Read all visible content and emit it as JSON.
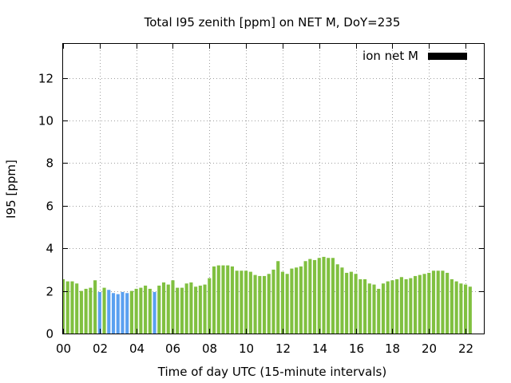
{
  "chart_data": {
    "type": "bar",
    "title": "Total I95 zenith [ppm] on NET M, DoY=235",
    "xlabel": "Time of day UTC (15-minute intervals)",
    "ylabel": "I95 [ppm]",
    "ylim": [
      0,
      13.6
    ],
    "xlim": [
      0,
      23
    ],
    "x_ticks": [
      "00",
      "02",
      "04",
      "06",
      "08",
      "10",
      "12",
      "14",
      "16",
      "18",
      "20",
      "22"
    ],
    "y_ticks": [
      "0",
      "2",
      "4",
      "6",
      "8",
      "10",
      "12"
    ],
    "grid": true,
    "legend": {
      "label": "ion net M",
      "placement": "top-right",
      "color": "#000000"
    },
    "colors": {
      "normal": "#80c040",
      "flagged": "#5aa0f0"
    },
    "interval_hours": 0.25,
    "series": [
      {
        "values": [
          2.55,
          2.45,
          2.45,
          2.35,
          2.0,
          2.1,
          2.15,
          2.5,
          1.95,
          2.15,
          2.05,
          1.9,
          1.85,
          1.95,
          1.9,
          2.0,
          2.1,
          2.15,
          2.25,
          2.1,
          1.95,
          2.25,
          2.4,
          2.3,
          2.5,
          2.15,
          2.15,
          2.35,
          2.4,
          2.2,
          2.25,
          2.3,
          2.6,
          3.15,
          3.2,
          3.2,
          3.2,
          3.15,
          2.95,
          2.95,
          2.95,
          2.9,
          2.75,
          2.7,
          2.7,
          2.8,
          3.0,
          3.4,
          2.9,
          2.8,
          3.05,
          3.1,
          3.15,
          3.4,
          3.5,
          3.45,
          3.55,
          3.6,
          3.55,
          3.55,
          3.25,
          3.1,
          2.85,
          2.9,
          2.8,
          2.55,
          2.55,
          2.35,
          2.3,
          2.1,
          2.35,
          2.45,
          2.5,
          2.55,
          2.65,
          2.55,
          2.6,
          2.7,
          2.75,
          2.8,
          2.85,
          2.95,
          2.95,
          2.95,
          2.85,
          2.55,
          2.45,
          2.35,
          2.3,
          2.2
        ],
        "flagged": [
          8,
          10,
          11,
          12,
          13,
          14,
          20
        ]
      }
    ]
  }
}
